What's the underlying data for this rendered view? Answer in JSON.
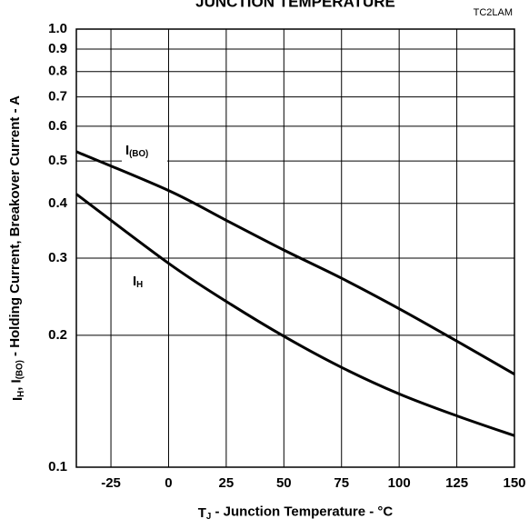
{
  "chart_data": {
    "type": "line",
    "title": "JUNCTION TEMPERATURE",
    "annotation": "TC2LAM",
    "xlabel": [
      "T",
      "J",
      " - Junction Temperature - °C"
    ],
    "ylabel": [
      "I",
      "H",
      ", I",
      "(BO)",
      " - Holding Current, Breakover Current - A"
    ],
    "x": [
      -40,
      0,
      25,
      50,
      75,
      100,
      125,
      150
    ],
    "series": [
      {
        "name": [
          "I",
          "(BO)"
        ],
        "color": "#000000",
        "values": [
          0.525,
          0.428,
          0.366,
          0.313,
          0.27,
          0.23,
          0.194,
          0.163
        ]
      },
      {
        "name": [
          "I",
          "H"
        ],
        "color": "#000000",
        "values": [
          0.42,
          0.292,
          0.239,
          0.199,
          0.169,
          0.147,
          0.131,
          0.118
        ]
      }
    ],
    "xlim": [
      -40,
      150
    ],
    "xticks": [
      -25,
      0,
      25,
      50,
      75,
      100,
      125,
      150
    ],
    "ylim": [
      0.1,
      1.0
    ],
    "yticks": [
      0.1,
      0.2,
      0.3,
      0.4,
      0.5,
      0.6,
      0.7,
      0.8,
      0.9,
      {
        "value": 1.0,
        "label": "1.0"
      }
    ],
    "log_y": true,
    "grid": true
  }
}
